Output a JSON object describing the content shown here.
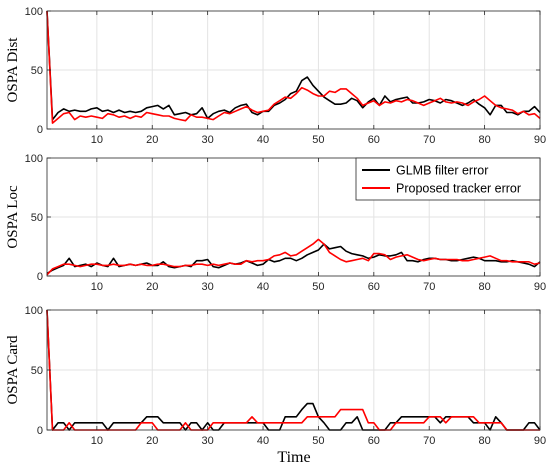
{
  "figure": {
    "xlabel": "Time",
    "legend": {
      "entries": [
        {
          "label": "GLMB filter error",
          "color": "#000000"
        },
        {
          "label": "Proposed tracker error",
          "color": "#ff0000"
        }
      ],
      "placement": "top-right of middle panel"
    }
  },
  "chart_data": [
    {
      "type": "line",
      "ylabel": "OSPA Dist",
      "xlim": [
        1,
        90
      ],
      "ylim": [
        0,
        100
      ],
      "xticks": [
        10,
        20,
        30,
        40,
        50,
        60,
        70,
        80,
        90
      ],
      "yticks": [
        0,
        50,
        100
      ],
      "grid": true,
      "x": [
        1,
        2,
        3,
        4,
        5,
        6,
        7,
        8,
        9,
        10,
        11,
        12,
        13,
        14,
        15,
        16,
        17,
        18,
        19,
        20,
        21,
        22,
        23,
        24,
        25,
        26,
        27,
        28,
        29,
        30,
        31,
        32,
        33,
        34,
        35,
        36,
        37,
        38,
        39,
        40,
        41,
        42,
        43,
        44,
        45,
        46,
        47,
        48,
        49,
        50,
        51,
        52,
        53,
        54,
        55,
        56,
        57,
        58,
        59,
        60,
        61,
        62,
        63,
        64,
        65,
        66,
        67,
        68,
        69,
        70,
        71,
        72,
        73,
        74,
        75,
        76,
        77,
        78,
        79,
        80,
        81,
        82,
        83,
        84,
        85,
        86,
        87,
        88,
        89,
        90
      ],
      "series": [
        {
          "name": "GLMB filter error",
          "color": "#000000",
          "values": [
            100,
            8,
            14,
            17,
            15,
            16,
            15,
            15,
            17,
            18,
            15,
            16,
            14,
            16,
            14,
            15,
            14,
            15,
            18,
            19,
            20,
            17,
            20,
            12,
            13,
            14,
            12,
            13,
            18,
            9,
            13,
            15,
            16,
            14,
            18,
            20,
            21,
            14,
            12,
            15,
            15,
            20,
            22,
            25,
            30,
            32,
            41,
            44,
            37,
            32,
            27,
            24,
            21,
            21,
            22,
            26,
            24,
            18,
            23,
            26,
            20,
            28,
            23,
            25,
            26,
            27,
            22,
            22,
            23,
            25,
            24,
            22,
            25,
            24,
            22,
            20,
            22,
            25,
            21,
            18,
            12,
            20,
            20,
            14,
            14,
            12,
            15,
            15,
            19,
            14
          ]
        },
        {
          "name": "Proposed tracker error",
          "color": "#ff0000",
          "values": [
            100,
            5,
            9,
            13,
            14,
            8,
            11,
            10,
            11,
            10,
            9,
            13,
            12,
            10,
            11,
            9,
            11,
            10,
            14,
            13,
            12,
            11,
            11,
            9,
            8,
            7,
            12,
            10,
            10,
            9,
            8,
            11,
            14,
            13,
            15,
            17,
            19,
            16,
            14,
            15,
            16,
            21,
            24,
            27,
            26,
            30,
            35,
            33,
            30,
            28,
            28,
            32,
            31,
            34,
            34,
            30,
            26,
            20,
            22,
            24,
            20,
            23,
            22,
            24,
            23,
            25,
            24,
            22,
            20,
            22,
            24,
            26,
            23,
            22,
            23,
            22,
            20,
            23,
            25,
            28,
            24,
            20,
            18,
            17,
            16,
            13,
            15,
            12,
            13,
            9
          ]
        }
      ]
    },
    {
      "type": "line",
      "ylabel": "OSPA Loc",
      "xlim": [
        1,
        90
      ],
      "ylim": [
        0,
        100
      ],
      "xticks": [
        10,
        20,
        30,
        40,
        50,
        60,
        70,
        80,
        90
      ],
      "yticks": [
        0,
        50,
        100
      ],
      "grid": true,
      "x": [
        1,
        2,
        3,
        4,
        5,
        6,
        7,
        8,
        9,
        10,
        11,
        12,
        13,
        14,
        15,
        16,
        17,
        18,
        19,
        20,
        21,
        22,
        23,
        24,
        25,
        26,
        27,
        28,
        29,
        30,
        31,
        32,
        33,
        34,
        35,
        36,
        37,
        38,
        39,
        40,
        41,
        42,
        43,
        44,
        45,
        46,
        47,
        48,
        49,
        50,
        51,
        52,
        53,
        54,
        55,
        56,
        57,
        58,
        59,
        60,
        61,
        62,
        63,
        64,
        65,
        66,
        67,
        68,
        69,
        70,
        71,
        72,
        73,
        74,
        75,
        76,
        77,
        78,
        79,
        80,
        81,
        82,
        83,
        84,
        85,
        86,
        87,
        88,
        89,
        90
      ],
      "series": [
        {
          "name": "GLMB filter error",
          "color": "#000000",
          "values": [
            2,
            5,
            7,
            9,
            15,
            8,
            9,
            10,
            8,
            11,
            9,
            8,
            15,
            8,
            9,
            10,
            9,
            10,
            11,
            9,
            9,
            12,
            8,
            7,
            8,
            9,
            8,
            13,
            13,
            14,
            8,
            7,
            9,
            11,
            10,
            11,
            13,
            11,
            9,
            10,
            14,
            12,
            13,
            15,
            15,
            13,
            15,
            18,
            20,
            22,
            27,
            23,
            24,
            25,
            21,
            19,
            18,
            17,
            15,
            16,
            18,
            17,
            17,
            18,
            20,
            13,
            13,
            12,
            14,
            15,
            15,
            14,
            14,
            13,
            13,
            14,
            15,
            16,
            15,
            13,
            13,
            13,
            12,
            12,
            13,
            12,
            11,
            10,
            8,
            12
          ]
        },
        {
          "name": "Proposed tracker error",
          "color": "#ff0000",
          "values": [
            1,
            6,
            8,
            10,
            10,
            9,
            8,
            9,
            10,
            10,
            9,
            9,
            10,
            9,
            9,
            10,
            9,
            10,
            9,
            9,
            10,
            10,
            9,
            8,
            8,
            9,
            9,
            10,
            10,
            9,
            10,
            9,
            10,
            11,
            10,
            10,
            13,
            12,
            13,
            13,
            14,
            17,
            18,
            20,
            17,
            18,
            21,
            24,
            27,
            31,
            27,
            20,
            17,
            14,
            12,
            13,
            14,
            15,
            13,
            19,
            19,
            18,
            14,
            16,
            17,
            18,
            16,
            14,
            13,
            14,
            15,
            14,
            14,
            14,
            14,
            13,
            13,
            14,
            15,
            16,
            17,
            15,
            13,
            13,
            12,
            12,
            12,
            12,
            10,
            11
          ]
        }
      ]
    },
    {
      "type": "line",
      "ylabel": "OSPA Card",
      "xlim": [
        1,
        90
      ],
      "ylim": [
        0,
        100
      ],
      "xticks": [
        10,
        20,
        30,
        40,
        50,
        60,
        70,
        80,
        90
      ],
      "yticks": [
        0,
        50,
        100
      ],
      "grid": true,
      "x": [
        1,
        2,
        3,
        4,
        5,
        6,
        7,
        8,
        9,
        10,
        11,
        12,
        13,
        14,
        15,
        16,
        17,
        18,
        19,
        20,
        21,
        22,
        23,
        24,
        25,
        26,
        27,
        28,
        29,
        30,
        31,
        32,
        33,
        34,
        35,
        36,
        37,
        38,
        39,
        40,
        41,
        42,
        43,
        44,
        45,
        46,
        47,
        48,
        49,
        50,
        51,
        52,
        53,
        54,
        55,
        56,
        57,
        58,
        59,
        60,
        61,
        62,
        63,
        64,
        65,
        66,
        67,
        68,
        69,
        70,
        71,
        72,
        73,
        74,
        75,
        76,
        77,
        78,
        79,
        80,
        81,
        82,
        83,
        84,
        85,
        86,
        87,
        88,
        89,
        90
      ],
      "series": [
        {
          "name": "GLMB filter error",
          "color": "#000000",
          "values": [
            100,
            0,
            6,
            6,
            0,
            6,
            6,
            6,
            6,
            6,
            6,
            0,
            6,
            6,
            6,
            6,
            6,
            6,
            11,
            11,
            11,
            6,
            6,
            6,
            6,
            0,
            6,
            6,
            0,
            6,
            0,
            0,
            6,
            6,
            6,
            6,
            6,
            6,
            6,
            6,
            0,
            0,
            0,
            11,
            11,
            11,
            17,
            22,
            22,
            11,
            6,
            0,
            0,
            0,
            6,
            6,
            11,
            0,
            0,
            0,
            0,
            0,
            6,
            6,
            11,
            11,
            11,
            11,
            11,
            11,
            11,
            6,
            11,
            11,
            11,
            11,
            11,
            6,
            6,
            6,
            0,
            11,
            6,
            0,
            0,
            0,
            0,
            6,
            6,
            0
          ]
        },
        {
          "name": "Proposed tracker error",
          "color": "#ff0000",
          "values": [
            100,
            0,
            0,
            0,
            6,
            0,
            0,
            0,
            0,
            0,
            0,
            0,
            0,
            0,
            0,
            0,
            0,
            6,
            6,
            6,
            0,
            0,
            0,
            0,
            0,
            6,
            0,
            0,
            0,
            0,
            6,
            6,
            6,
            6,
            6,
            6,
            6,
            11,
            6,
            6,
            6,
            6,
            6,
            6,
            6,
            6,
            6,
            11,
            11,
            11,
            11,
            11,
            11,
            17,
            17,
            17,
            17,
            17,
            6,
            6,
            0,
            0,
            0,
            6,
            6,
            6,
            6,
            6,
            6,
            11,
            11,
            11,
            6,
            11,
            11,
            11,
            11,
            11,
            6,
            6,
            6,
            6,
            6,
            0,
            0,
            0,
            0,
            0,
            0,
            0
          ]
        }
      ]
    }
  ]
}
